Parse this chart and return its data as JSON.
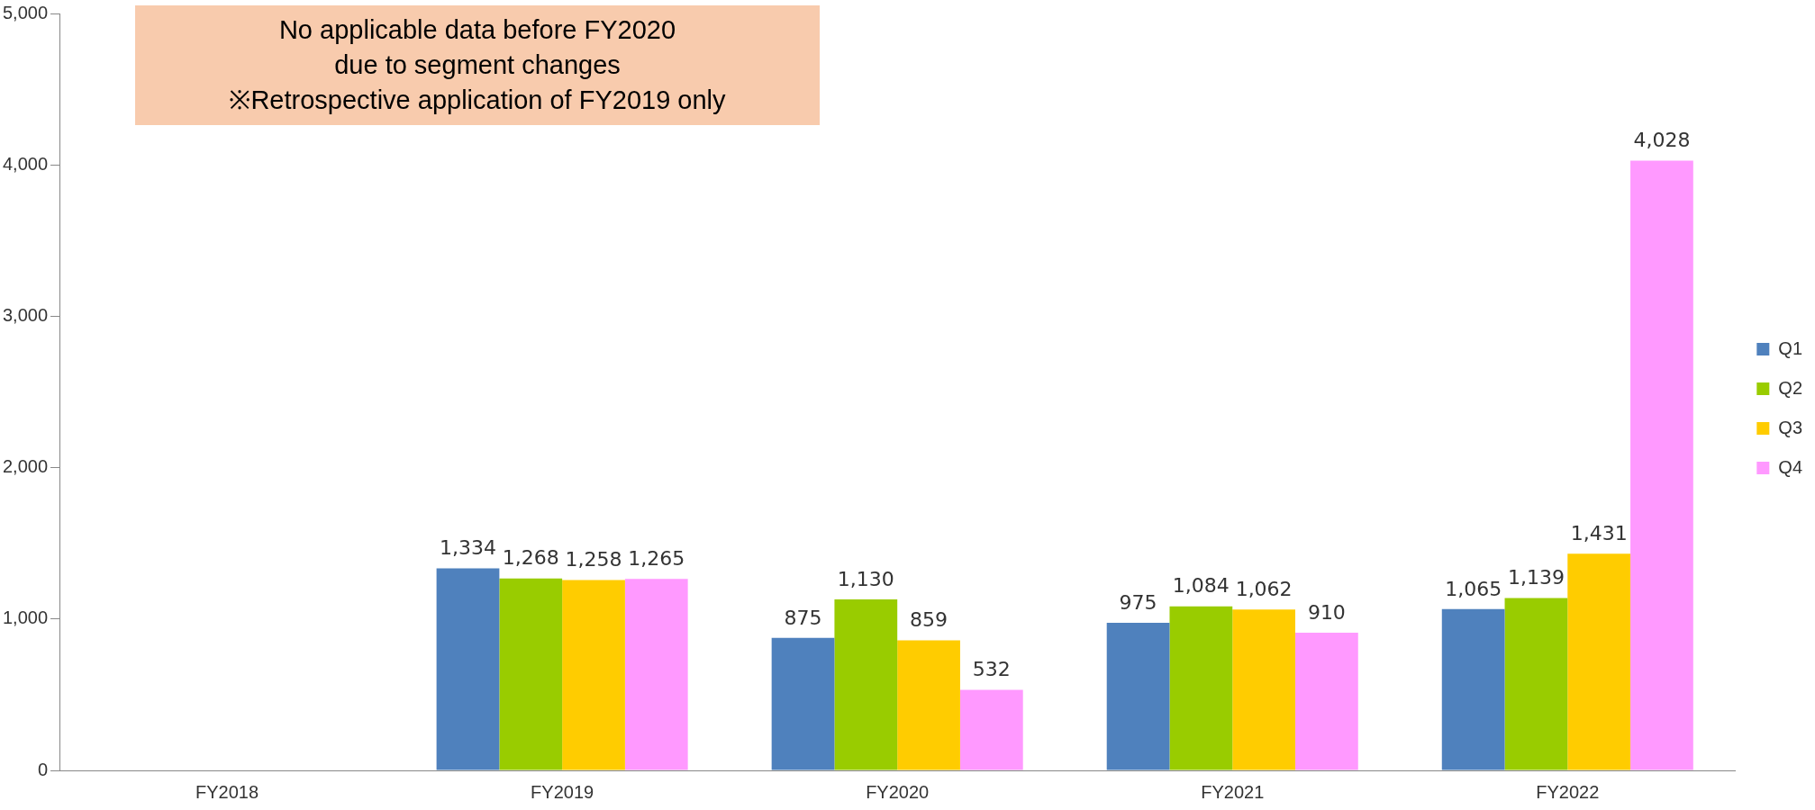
{
  "chart_data": {
    "type": "bar",
    "categories": [
      "FY2018",
      "FY2019",
      "FY2020",
      "FY2021",
      "FY2022"
    ],
    "series": [
      {
        "name": "Q1",
        "color": "#4f81bd",
        "values": [
          null,
          1334,
          875,
          975,
          1065
        ],
        "value_labels": [
          null,
          "1,334",
          "875",
          "975",
          "1,065"
        ]
      },
      {
        "name": "Q2",
        "color": "#99cc00",
        "values": [
          null,
          1268,
          1130,
          1084,
          1139
        ],
        "value_labels": [
          null,
          "1,268",
          "1,130",
          "1,084",
          "1,139"
        ]
      },
      {
        "name": "Q3",
        "color": "#ffcc00",
        "values": [
          null,
          1258,
          859,
          1062,
          1431
        ],
        "value_labels": [
          null,
          "1,258",
          "859",
          "1,062",
          "1,431"
        ]
      },
      {
        "name": "Q4",
        "color": "#ff99ff",
        "values": [
          null,
          1265,
          532,
          910,
          4028
        ],
        "value_labels": [
          null,
          "1,265",
          "532",
          "910",
          "4,028"
        ]
      }
    ],
    "ylim": [
      0,
      5000
    ],
    "yticks": [
      0,
      {
        "value": 1000,
        "label": "1,000"
      },
      {
        "value": 2000,
        "label": "2,000"
      },
      {
        "value": 3000,
        "label": "3,000"
      },
      {
        "value": 4000,
        "label": "4,000"
      },
      {
        "value": 5000,
        "label": "5,000"
      }
    ],
    "grid": false,
    "legend": "right",
    "annotations": [
      "No applicable data before FY2020\ndue to segment changes\n※Retrospective application of FY2019 only"
    ]
  }
}
